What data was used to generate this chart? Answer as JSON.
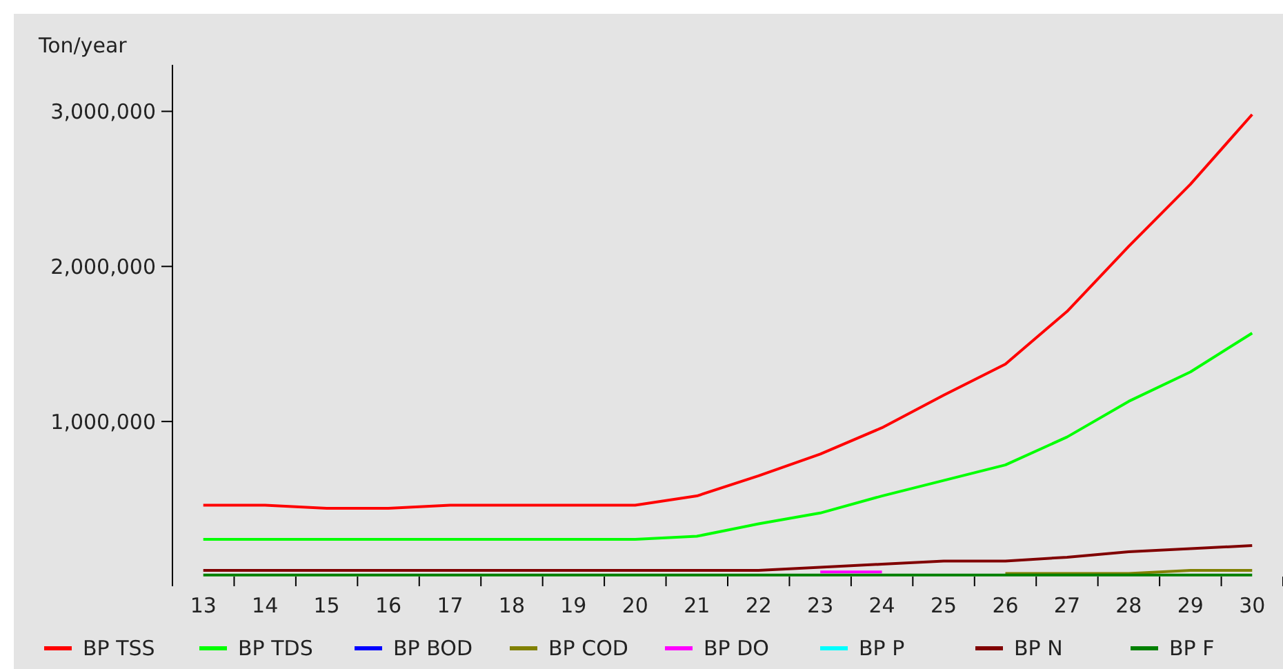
{
  "chart_data": {
    "type": "line",
    "ylabel": "Ton/year",
    "categories": [
      "13",
      "14",
      "15",
      "16",
      "17",
      "18",
      "19",
      "20",
      "21",
      "22",
      "23",
      "24",
      "25",
      "26",
      "27",
      "28",
      "29",
      "30"
    ],
    "ylim": [
      0,
      3300000
    ],
    "yticks": [
      {
        "value": 1000000,
        "label": "1,000,000"
      },
      {
        "value": 2000000,
        "label": "2,000,000"
      },
      {
        "value": 3000000,
        "label": "3,000,000"
      }
    ],
    "grid": false,
    "legend": "bottom",
    "marker": "none",
    "line_style": "solid",
    "series": [
      {
        "name": "BP TSS",
        "color": "#ff0000",
        "values": [
          460000,
          460000,
          440000,
          440000,
          460000,
          460000,
          460000,
          460000,
          520000,
          650000,
          790000,
          960000,
          1170000,
          1370000,
          1710000,
          2130000,
          2530000,
          2980000
        ]
      },
      {
        "name": "BP TDS",
        "color": "#00ff00",
        "values": [
          240000,
          240000,
          240000,
          240000,
          240000,
          240000,
          240000,
          240000,
          260000,
          340000,
          410000,
          520000,
          620000,
          720000,
          900000,
          1130000,
          1320000,
          1570000
        ]
      },
      {
        "name": "BP BOD",
        "color": "#0000ff",
        "values": [
          null,
          null,
          null,
          null,
          null,
          null,
          null,
          null,
          null,
          null,
          null,
          null,
          null,
          null,
          null,
          null,
          null,
          null
        ]
      },
      {
        "name": "BP COD",
        "color": "#808000",
        "values": [
          null,
          null,
          null,
          null,
          null,
          null,
          null,
          null,
          null,
          null,
          null,
          null,
          null,
          20000,
          20000,
          20000,
          40000,
          40000
        ]
      },
      {
        "name": "BP DO",
        "color": "#ff00ff",
        "values": [
          null,
          null,
          null,
          null,
          null,
          null,
          null,
          null,
          null,
          null,
          30000,
          30000,
          null,
          null,
          null,
          null,
          null,
          null
        ]
      },
      {
        "name": "BP P",
        "color": "#00ffff",
        "values": [
          null,
          null,
          null,
          null,
          null,
          null,
          null,
          null,
          null,
          null,
          null,
          null,
          null,
          null,
          null,
          null,
          null,
          null
        ]
      },
      {
        "name": "BP N",
        "color": "#800000",
        "values": [
          40000,
          40000,
          40000,
          40000,
          40000,
          40000,
          40000,
          40000,
          40000,
          40000,
          60000,
          80000,
          100000,
          100000,
          125000,
          160000,
          180000,
          200000
        ]
      },
      {
        "name": "BP F",
        "color": "#008000",
        "values": [
          10000,
          10000,
          10000,
          10000,
          10000,
          10000,
          10000,
          10000,
          10000,
          10000,
          10000,
          10000,
          10000,
          10000,
          10000,
          10000,
          10000,
          10000
        ]
      }
    ]
  }
}
